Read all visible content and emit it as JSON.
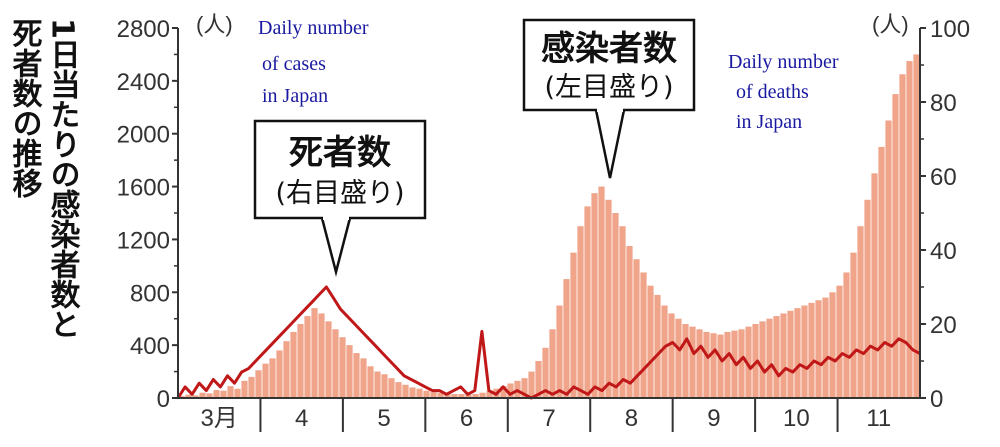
{
  "vertical_title": {
    "line1": "1日当たりの感染者数と",
    "line2": "死者数の推移"
  },
  "left_unit": "(人)",
  "right_unit": "(人)",
  "notes": {
    "cases_en": [
      "Daily number",
      "of cases",
      "in Japan"
    ],
    "deaths_en": [
      "Daily number",
      "of deaths",
      "in Japan"
    ]
  },
  "callouts": {
    "deaths": {
      "main": "死者数",
      "sub": "(右目盛り)"
    },
    "cases": {
      "main": "感染者数",
      "sub": "(左目盛り)"
    }
  },
  "chart_data": {
    "type": "bar+line",
    "x_labels": [
      "3月",
      "4",
      "5",
      "6",
      "7",
      "8",
      "9",
      "10",
      "11"
    ],
    "y_left": {
      "ticks": [
        "0",
        "400",
        "800",
        "1200",
        "1600",
        "2000",
        "2400",
        "2800"
      ],
      "lim": [
        0,
        2800
      ]
    },
    "y_right": {
      "ticks": [
        "0",
        "20",
        "40",
        "60",
        "80",
        "100"
      ],
      "lim": [
        0,
        100
      ]
    },
    "colors": {
      "cases": "#f0a48a",
      "deaths": "#c01818"
    },
    "series": [
      {
        "name": "感染者数",
        "type": "bar",
        "axis": "left",
        "values": [
          15,
          25,
          20,
          40,
          35,
          60,
          55,
          90,
          70,
          130,
          160,
          210,
          260,
          300,
          360,
          430,
          500,
          560,
          620,
          680,
          640,
          580,
          520,
          460,
          400,
          340,
          300,
          240,
          200,
          180,
          150,
          120,
          100,
          80,
          70,
          55,
          45,
          40,
          35,
          30,
          30,
          25,
          30,
          40,
          55,
          70,
          90,
          110,
          130,
          150,
          200,
          280,
          380,
          520,
          700,
          900,
          1100,
          1300,
          1450,
          1550,
          1600,
          1500,
          1400,
          1300,
          1150,
          1050,
          950,
          850,
          780,
          700,
          640,
          600,
          560,
          540,
          520,
          500,
          490,
          480,
          500,
          510,
          520,
          540,
          560,
          580,
          600,
          620,
          640,
          660,
          680,
          700,
          720,
          740,
          760,
          800,
          850,
          950,
          1100,
          1300,
          1500,
          1700,
          1900,
          2100,
          2300,
          2450,
          2550,
          2600
        ]
      },
      {
        "name": "死者数",
        "type": "line",
        "axis": "right",
        "values": [
          0,
          3,
          1,
          4,
          2,
          5,
          3,
          6,
          4,
          7,
          8,
          10,
          12,
          14,
          16,
          18,
          20,
          22,
          24,
          26,
          28,
          30,
          27,
          24,
          22,
          20,
          18,
          16,
          14,
          12,
          10,
          8,
          6,
          5,
          4,
          3,
          2,
          2,
          1,
          2,
          3,
          1,
          2,
          18,
          2,
          1,
          3,
          1,
          2,
          1,
          0,
          1,
          2,
          1,
          2,
          1,
          3,
          2,
          1,
          3,
          2,
          4,
          3,
          5,
          4,
          6,
          8,
          10,
          12,
          14,
          15,
          13,
          16,
          12,
          14,
          11,
          13,
          10,
          12,
          9,
          11,
          8,
          10,
          7,
          9,
          6,
          8,
          7,
          9,
          8,
          10,
          9,
          11,
          10,
          12,
          11,
          13,
          12,
          14,
          13,
          15,
          14,
          16,
          15,
          13,
          12
        ]
      }
    ]
  }
}
